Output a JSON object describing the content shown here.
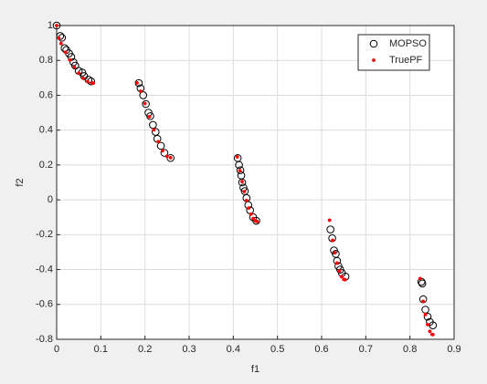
{
  "chart_data": {
    "type": "scatter",
    "xlabel": "f1",
    "ylabel": "f2",
    "xlim": [
      0,
      0.9
    ],
    "ylim": [
      -0.8,
      1
    ],
    "xticks": [
      0,
      0.1,
      0.2,
      0.3,
      0.4,
      0.5,
      0.6,
      0.7,
      0.8,
      0.9
    ],
    "yticks": [
      -0.8,
      -0.6,
      -0.4,
      -0.2,
      0,
      0.2,
      0.4,
      0.6,
      0.8,
      1
    ],
    "grid": true,
    "legend": "upper right",
    "series": [
      {
        "name": "MOPSO",
        "color": "#000000",
        "marker": "open-circle",
        "x": [
          0,
          0.008,
          0.012,
          0.018,
          0.022,
          0.028,
          0.033,
          0.038,
          0.042,
          0.05,
          0.058,
          0.062,
          0.072,
          0.078,
          0.186,
          0.19,
          0.196,
          0.202,
          0.208,
          0.212,
          0.218,
          0.224,
          0.228,
          0.236,
          0.244,
          0.258,
          0.41,
          0.413,
          0.416,
          0.418,
          0.42,
          0.423,
          0.426,
          0.43,
          0.434,
          0.438,
          0.445,
          0.452,
          0.62,
          0.624,
          0.628,
          0.632,
          0.635,
          0.638,
          0.642,
          0.646,
          0.654,
          0.826,
          0.828,
          0.83,
          0.835,
          0.84,
          0.845,
          0.852
        ],
        "values": [
          1.0,
          0.94,
          0.93,
          0.87,
          0.86,
          0.84,
          0.82,
          0.79,
          0.77,
          0.74,
          0.73,
          0.71,
          0.69,
          0.68,
          0.67,
          0.64,
          0.6,
          0.55,
          0.5,
          0.48,
          0.43,
          0.39,
          0.35,
          0.31,
          0.27,
          0.24,
          0.24,
          0.2,
          0.17,
          0.14,
          0.1,
          0.07,
          0.05,
          0.01,
          -0.03,
          -0.06,
          -0.1,
          -0.12,
          -0.17,
          -0.22,
          -0.29,
          -0.31,
          -0.35,
          -0.38,
          -0.4,
          -0.42,
          -0.44,
          -0.47,
          -0.48,
          -0.57,
          -0.63,
          -0.67,
          -0.7,
          -0.72
        ]
      },
      {
        "name": "TruePF",
        "color": "#ff0000",
        "marker": "dot",
        "x": [
          0,
          0.005,
          0.01,
          0.02,
          0.03,
          0.04,
          0.05,
          0.06,
          0.07,
          0.08,
          0.083,
          0.182,
          0.19,
          0.2,
          0.21,
          0.22,
          0.23,
          0.24,
          0.25,
          0.258,
          0.409,
          0.415,
          0.42,
          0.425,
          0.43,
          0.435,
          0.44,
          0.445,
          0.45,
          0.454,
          0.618,
          0.625,
          0.63,
          0.635,
          0.64,
          0.645,
          0.65,
          0.653,
          0.823,
          0.83,
          0.835,
          0.84,
          0.845,
          0.85,
          0.852
        ],
        "values": [
          1,
          0.9285,
          0.8969,
          0.8468,
          0.8025,
          0.762,
          0.7264,
          0.698,
          0.6788,
          0.6702,
          0.6696,
          0.6708,
          0.6228,
          0.5528,
          0.4768,
          0.4016,
          0.3343,
          0.2819,
          0.25,
          0.2421,
          0.2462,
          0.1674,
          0.1049,
          0.0476,
          -0.0036,
          -0.0471,
          -0.0817,
          -0.1068,
          -0.1208,
          -0.1242,
          -0.1167,
          -0.2325,
          -0.3034,
          -0.3627,
          -0.4086,
          -0.4404,
          -0.4562,
          -0.4581,
          -0.4512,
          -0.5825,
          -0.6578,
          -0.7154,
          -0.7541,
          -0.772,
          -0.7733
        ]
      }
    ]
  }
}
